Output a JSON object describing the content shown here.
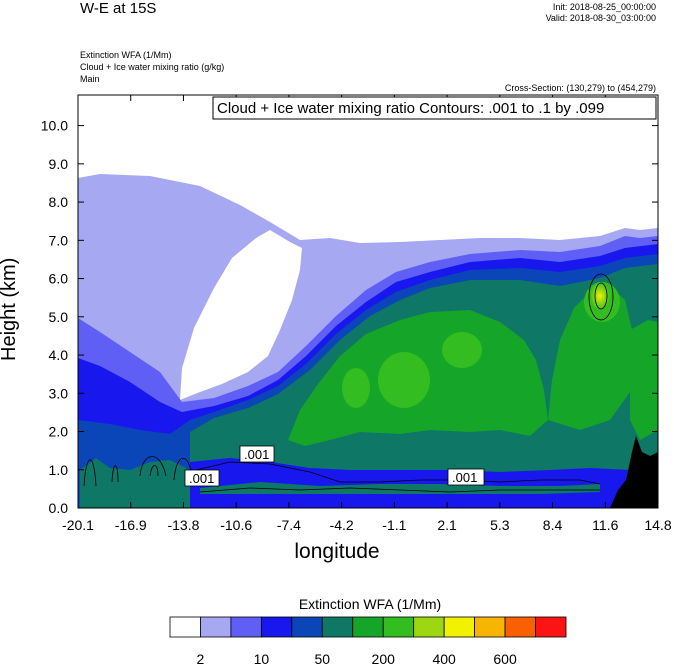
{
  "header": {
    "title": "W-E at 15S",
    "init": "Init: 2018-08-25_00:00:00",
    "valid": "Valid: 2018-08-30_03:00:00",
    "field1": "Extinction WFA   (1/Mm)",
    "field2": "Cloud + Ice water mixing ratio   (g/kg)",
    "field3": "Main",
    "cross_section": "Cross-Section: (130,279) to (454,279)"
  },
  "chart_data": {
    "type": "contour",
    "title": "Cloud + Ice water mixing ratio Contours: .001 to .1 by .099",
    "xlabel": "longitude",
    "ylabel": "Height (km)",
    "xticks": [
      "-20.1",
      "-16.9",
      "-13.8",
      "-10.6",
      "-7.4",
      "-4.2",
      "-1.1",
      "2.1",
      "5.3",
      "8.4",
      "11.6",
      "14.8"
    ],
    "yticks": [
      "0.0",
      "1.0",
      "2.0",
      "3.0",
      "4.0",
      "5.0",
      "6.0",
      "7.0",
      "8.0",
      "9.0",
      "10.0"
    ],
    "ylim": [
      0,
      10.8
    ],
    "contour_labels": [
      ".001",
      ".001",
      ".001"
    ],
    "colorbar": {
      "title": "Extinction WFA  (1/Mm)",
      "labels": [
        "2",
        "10",
        "50",
        "200",
        "400",
        "600"
      ],
      "colors": [
        "#ffffff",
        "#a6a8f2",
        "#5f5ff5",
        "#1818ee",
        "#0b46b8",
        "#0e7766",
        "#15a528",
        "#34bd20",
        "#9cd712",
        "#f2f200",
        "#f7b400",
        "#fa6000",
        "#fc1414"
      ]
    }
  }
}
